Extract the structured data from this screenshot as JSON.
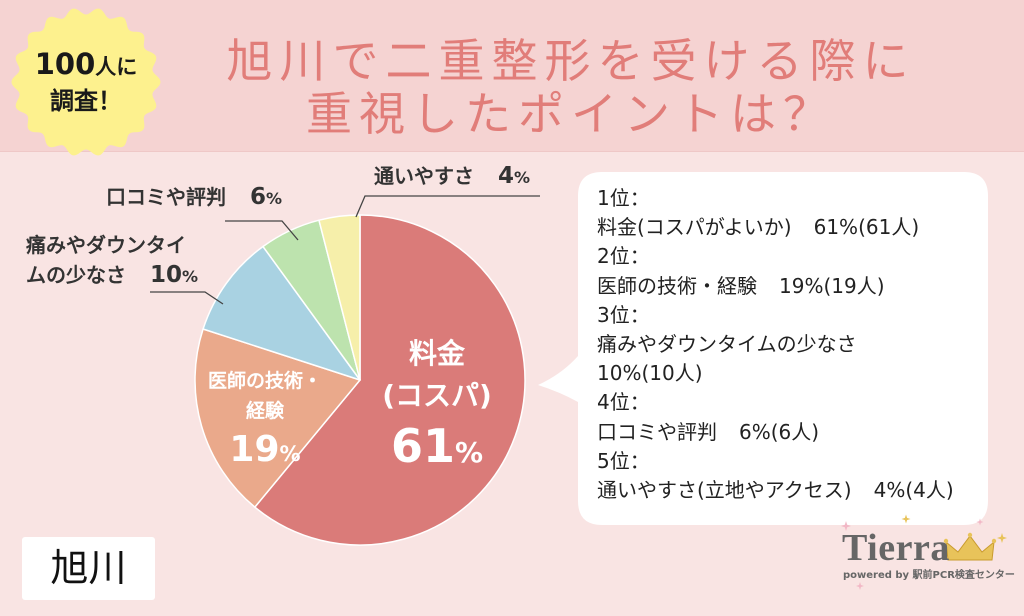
{
  "badge": {
    "count": "100",
    "count_suffix": "人に",
    "line2": "調査！",
    "color": "#fdf18e"
  },
  "title": {
    "line1": "旭川で二重整形を受ける際に",
    "line2": "重視したポイントは？",
    "color": "#e17d79"
  },
  "chart_data": {
    "type": "pie",
    "unit": "%",
    "slices": [
      {
        "label_lines": [
          "料金",
          "(コスパ)"
        ],
        "value": 61,
        "color": "#da7b79"
      },
      {
        "label_lines": [
          "医師の技術・",
          "経験"
        ],
        "value": 19,
        "color": "#eaa98b"
      },
      {
        "label_lines": [
          "痛みやダウンタイ",
          "ムの少なさ"
        ],
        "value": 10,
        "color": "#a9d2e2"
      },
      {
        "label_lines": [
          "口コミや評判"
        ],
        "value": 6,
        "color": "#bde3ae"
      },
      {
        "label_lines": [
          "通いやすさ"
        ],
        "value": 4,
        "color": "#f6efaa"
      }
    ]
  },
  "ranking": {
    "items": [
      {
        "rank": "1位：",
        "item": "料金(コスパがよいか)",
        "value": "61%(61人)"
      },
      {
        "rank": "2位：",
        "item": "医師の技術・経験",
        "value": "19%(19人)"
      },
      {
        "rank": "3位：",
        "item": "痛みやダウンタイムの少なさ",
        "value": "10%(10人)"
      },
      {
        "rank": "4位：",
        "item": "口コミや評判",
        "value": "6%(6人)"
      },
      {
        "rank": "5位：",
        "item": "通いやすさ(立地やアクセス)",
        "value": "4%(4人)"
      }
    ]
  },
  "location_tag": {
    "text": "旭川"
  },
  "logo": {
    "name": "Tierra",
    "tagline": "powered by 駅前PCR検査センター"
  }
}
